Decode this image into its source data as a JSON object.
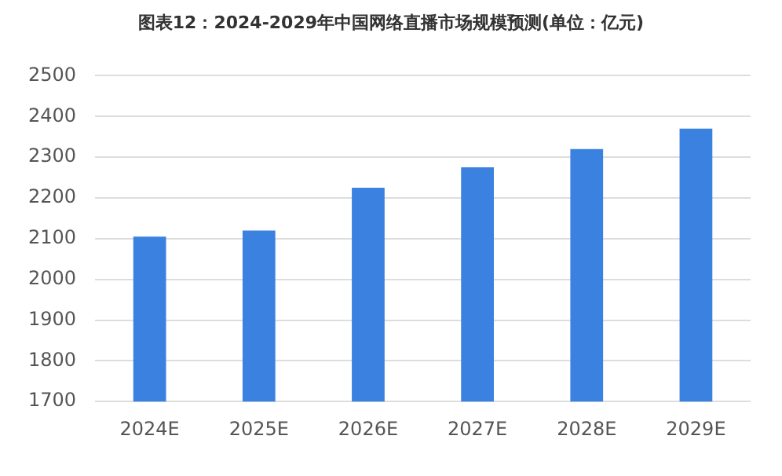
{
  "chart_data": {
    "type": "bar",
    "title": "图表12：2024-2029年中国网络直播市场规模预测(单位：亿元)",
    "categories": [
      "2024E",
      "2025E",
      "2026E",
      "2027E",
      "2028E",
      "2029E"
    ],
    "values": [
      2105,
      2120,
      2225,
      2275,
      2320,
      2370
    ],
    "color": "#3b82e0",
    "ylim": [
      1700,
      2500
    ],
    "yticks": [
      1700,
      1800,
      1900,
      2000,
      2100,
      2200,
      2300,
      2400,
      2500
    ],
    "grid": "y",
    "legend": false
  }
}
